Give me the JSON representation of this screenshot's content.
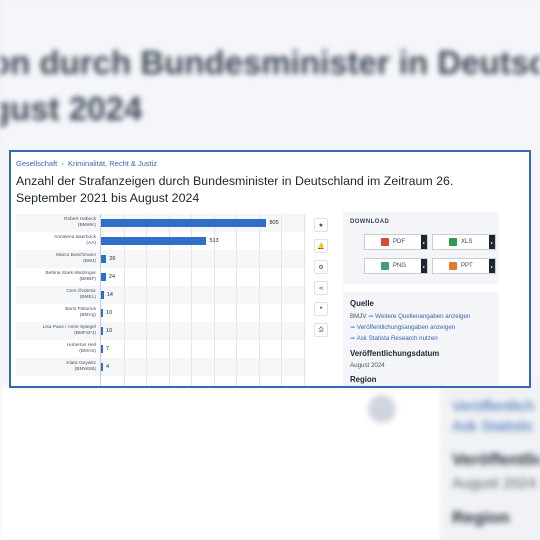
{
  "background": {
    "title_line1": "on durch Bundesminister in Deutschland",
    "title_line2": "gust 2024",
    "links": [
      "Veröffentlich",
      "Ask Statistic"
    ],
    "section1": "Veröffentlic",
    "date": "August 2024",
    "section2": "Region"
  },
  "breadcrumb": {
    "level1": "Gesellschaft",
    "separator": "›",
    "level2": "Kriminalität, Recht & Justiz"
  },
  "page_title": "Anzahl der Strafanzeigen durch Bundesminister in Deutschland im Zeitraum 26. September 2021 bis August 2024",
  "chart_data": {
    "type": "bar",
    "orientation": "horizontal",
    "categories": [
      "Robert Habeck (BMWK)",
      "Annalena Baerbock (AA)",
      "Marco Buschmann (BMJ)",
      "Bettina Stark-Watzinger (BMBF)",
      "Cem Özdemir (BMEL)",
      "Boris Pistorius (BMVg)",
      "Lisa Paus / Anne Spiegel (BMFSFJ)",
      "Hubertus Heil (BMAS)",
      "Klara Geywitz (BMWSB)"
    ],
    "labels": [
      [
        "Robert Habeck",
        "(BMWK)"
      ],
      [
        "Annalena Baerbock",
        "(AA)"
      ],
      [
        "Marco Buschmann",
        "(BMJ)"
      ],
      [
        "Bettina Stark-Watzinger",
        "(BMBF)"
      ],
      [
        "Cem Özdemir",
        "(BMEL)"
      ],
      [
        "Boris Pistorius",
        "(BMVg)"
      ],
      [
        "Lisa Paus / Anne Spiegel",
        "(BMFSFJ)"
      ],
      [
        "Hubertus Heil",
        "(BMAS)"
      ],
      [
        "Klara Geywitz",
        "(BMWSB)"
      ]
    ],
    "values": [
      805,
      513,
      26,
      24,
      14,
      10,
      10,
      7,
      4
    ],
    "xlim": [
      0,
      900
    ],
    "bar_color": "#2f6fc9",
    "grid": true
  },
  "tools": [
    {
      "name": "favorite-icon",
      "glyph": "★"
    },
    {
      "name": "notification-icon",
      "glyph": "🔔"
    },
    {
      "name": "settings-icon",
      "glyph": "⚙"
    },
    {
      "name": "share-icon",
      "glyph": "⋖"
    },
    {
      "name": "cite-icon",
      "glyph": "❝"
    },
    {
      "name": "print-icon",
      "glyph": "⎙"
    }
  ],
  "download": {
    "heading": "DOWNLOAD",
    "buttons": [
      {
        "label": "PDF",
        "color": "#d9463b"
      },
      {
        "label": "XLS",
        "color": "#2e9a4b"
      },
      {
        "label": "PNG",
        "color": "#3aa17a"
      },
      {
        "label": "PPT",
        "color": "#e07a2c"
      }
    ]
  },
  "info": {
    "source_heading": "Quelle",
    "source_name": "BMJV",
    "source_link": "Weitere Quellenangaben anzeigen",
    "publication_link": "Veröffentlichungsangaben anzeigen",
    "research_link": "Ask Statista Research nutzen",
    "date_heading": "Veröffentlichungsdatum",
    "date_value": "August 2024",
    "region_heading": "Region"
  }
}
